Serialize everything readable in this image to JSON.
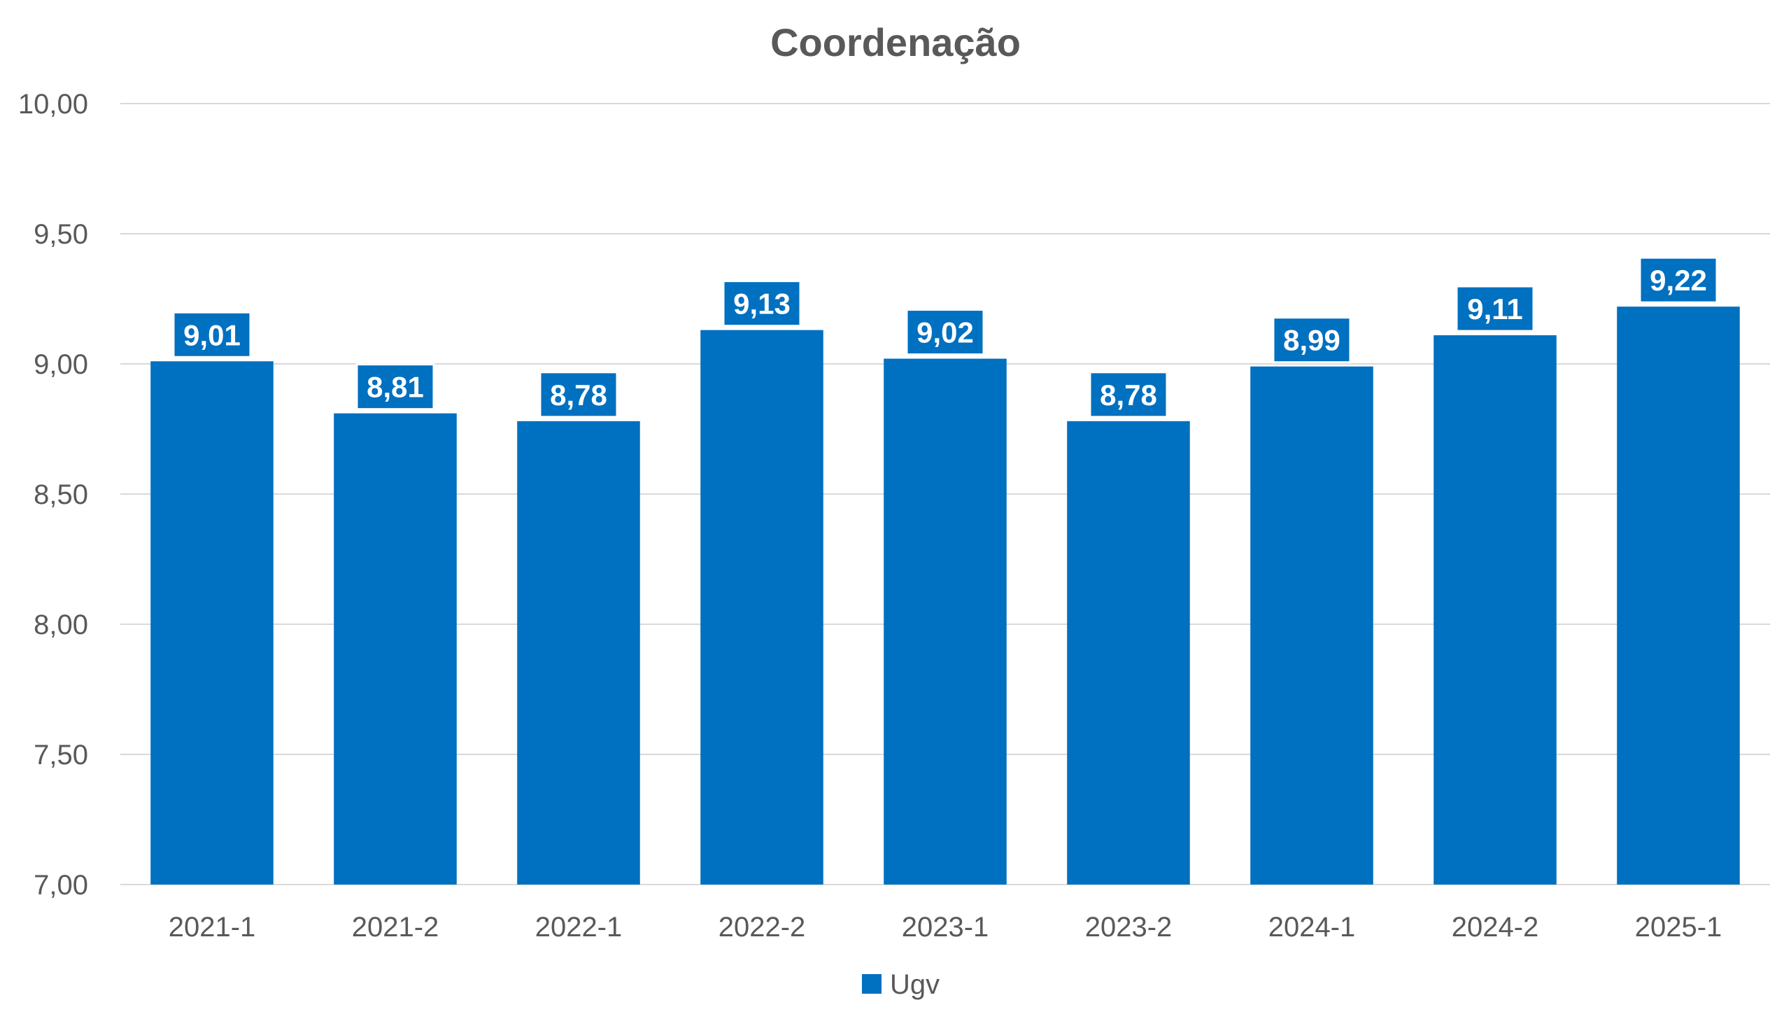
{
  "chart_data": {
    "type": "bar",
    "title": "Coordenação",
    "xlabel": "",
    "ylabel": "",
    "categories": [
      "2021-1",
      "2021-2",
      "2022-1",
      "2022-2",
      "2023-1",
      "2023-2",
      "2024-1",
      "2024-2",
      "2025-1"
    ],
    "series": [
      {
        "name": "Ugv",
        "values": [
          9.01,
          8.81,
          8.78,
          9.13,
          9.02,
          8.78,
          8.99,
          9.11,
          9.22
        ],
        "data_labels": [
          "9,01",
          "8,81",
          "8,78",
          "9,13",
          "9,02",
          "8,78",
          "8,99",
          "9,11",
          "9,22"
        ]
      }
    ],
    "ylim": [
      7.0,
      10.0
    ],
    "yticks": [
      7.0,
      7.5,
      8.0,
      8.5,
      9.0,
      9.5,
      10.0
    ],
    "ytick_labels": [
      "7,00",
      "7,50",
      "8,00",
      "8,50",
      "9,00",
      "9,50",
      "10,00"
    ],
    "grid": true,
    "legend_position": "bottom",
    "colors": {
      "bar": "#0070C0",
      "grid": "#d9d9d9",
      "text": "#595959"
    }
  }
}
